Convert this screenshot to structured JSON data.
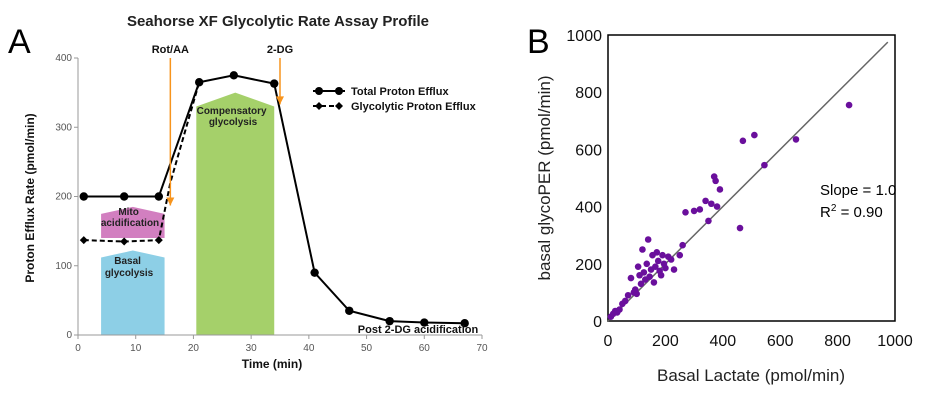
{
  "chart_data": [
    {
      "panel": "A",
      "type": "line",
      "title": "Seahorse XF Glycolytic Rate Assay Profile",
      "xlabel": "Time (min)",
      "ylabel": "Proton Efflux Rate (pmol/min)",
      "xlim": [
        0,
        70
      ],
      "ylim": [
        0,
        400
      ],
      "xticks": [
        0,
        10,
        20,
        30,
        40,
        50,
        60,
        70
      ],
      "yticks": [
        0,
        100,
        200,
        300,
        400
      ],
      "legend_position": "top-right",
      "series": [
        {
          "name": "Total Proton Efflux",
          "style": "solid-circle",
          "x": [
            1,
            8,
            14,
            21,
            27,
            34,
            41,
            47,
            54,
            60,
            67
          ],
          "y": [
            200,
            200,
            200,
            365,
            375,
            363,
            90,
            35,
            20,
            18,
            17
          ]
        },
        {
          "name": "Glycolytic Proton Efflux",
          "style": "dashed-diamond",
          "x": [
            1,
            8,
            14
          ],
          "y": [
            137,
            135,
            137
          ]
        }
      ],
      "injections": [
        {
          "label": "Rot/AA",
          "x": 16
        },
        {
          "label": "2-DG",
          "x": 35
        }
      ],
      "regions": [
        {
          "label": "Basal glycolysis",
          "color": "#8dcfe6",
          "x_start": 4,
          "x_end": 15,
          "y_top": 112
        },
        {
          "label": "Mito acidification",
          "color": "#d27fc0",
          "x_start": 4,
          "x_end": 15,
          "y_top": 185,
          "y_bottom": 140
        },
        {
          "label": "Compensatory glycolysis",
          "color": "#a5d06a",
          "x_start": 20.5,
          "x_end": 34,
          "y_top": 350
        }
      ],
      "annotations": [
        {
          "text": "Post 2-DG acidification",
          "x": 58,
          "y": 5
        }
      ]
    },
    {
      "panel": "B",
      "type": "scatter",
      "xlabel": "Basal Lactate (pmol/min)",
      "ylabel": "basal glycoPER (pmol/min)",
      "xlim": [
        0,
        1000
      ],
      "ylim": [
        0,
        1000
      ],
      "xticks": [
        0,
        200,
        400,
        600,
        800,
        1000
      ],
      "yticks": [
        0,
        200,
        400,
        600,
        800,
        1000
      ],
      "point_color": "#6a0f9c",
      "fit_line": {
        "slope": 1.0,
        "intercept": 0,
        "color": "#666666"
      },
      "stats": {
        "slope_text": "Slope = 1.0",
        "r2_prefix": "R",
        "r2_sup": "2",
        "r2_value": " = 0.90"
      },
      "x": [
        10,
        18,
        25,
        32,
        40,
        50,
        60,
        70,
        80,
        90,
        95,
        100,
        105,
        110,
        115,
        120,
        125,
        130,
        135,
        140,
        145,
        150,
        155,
        160,
        165,
        170,
        175,
        180,
        185,
        190,
        195,
        200,
        210,
        220,
        230,
        250,
        260,
        270,
        300,
        320,
        340,
        350,
        360,
        370,
        375,
        380,
        390,
        460,
        470,
        510,
        545,
        655,
        840
      ],
      "y": [
        15,
        25,
        35,
        30,
        40,
        60,
        70,
        90,
        150,
        100,
        110,
        95,
        190,
        160,
        130,
        250,
        170,
        145,
        200,
        285,
        155,
        180,
        230,
        135,
        190,
        240,
        210,
        175,
        160,
        230,
        200,
        185,
        225,
        215,
        180,
        230,
        265,
        380,
        385,
        390,
        420,
        350,
        410,
        505,
        490,
        400,
        460,
        325,
        630,
        650,
        545,
        635,
        755
      ]
    }
  ]
}
